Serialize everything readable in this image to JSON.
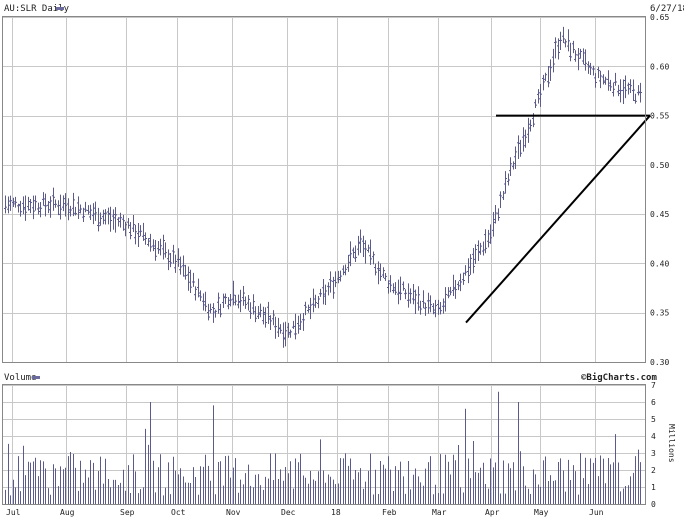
{
  "header": {
    "title": "AU:SLR Daily",
    "date": "6/27/18",
    "credit": "©BigCharts.com"
  },
  "colors": {
    "background": "#ffffff",
    "grid": "#c8c8c8",
    "bars": "#5a5a8c",
    "trendline": "#000000",
    "legend_marker": "#6b6b9e"
  },
  "chart_data": [
    {
      "type": "ohlc",
      "title": "AU:SLR Daily",
      "date_label": "6/27/18",
      "ylim": [
        0.3,
        0.65
      ],
      "yticks": [
        0.3,
        0.35,
        0.4,
        0.45,
        0.5,
        0.55,
        0.6,
        0.65
      ],
      "ytick_labels": [
        "0.30",
        "0.35",
        "0.40",
        "0.45",
        "0.50",
        "0.55",
        "0.60",
        "0.65"
      ],
      "grid": true,
      "month_labels": [
        "Jul",
        "Aug",
        "Sep",
        "Oct",
        "Nov",
        "Dec",
        "18",
        "Feb",
        "Mar",
        "Apr",
        "May",
        "Jun"
      ],
      "approx_close_path": [
        {
          "x": "Jul",
          "y": 0.46
        },
        {
          "x": "Aug",
          "y": 0.46
        },
        {
          "x": "Sep",
          "y": 0.44
        },
        {
          "x": "Oct",
          "y": 0.4
        },
        {
          "x": "Oct (late)",
          "y": 0.35
        },
        {
          "x": "Nov",
          "y": 0.37
        },
        {
          "x": "Dec",
          "y": 0.33
        },
        {
          "x": "18",
          "y": 0.37
        },
        {
          "x": "18 (mid)",
          "y": 0.42
        },
        {
          "x": "Feb",
          "y": 0.38
        },
        {
          "x": "Mar",
          "y": 0.35
        },
        {
          "x": "Apr",
          "y": 0.43
        },
        {
          "x": "Apr (late)",
          "y": 0.5
        },
        {
          "x": "May",
          "y": 0.57
        },
        {
          "x": "May (mid)",
          "y": 0.63
        },
        {
          "x": "Jun",
          "y": 0.59
        },
        {
          "x": "Jun (late)",
          "y": 0.57
        }
      ],
      "annotations": [
        {
          "kind": "horizontal-line",
          "y": 0.55,
          "from": "Apr (mid)",
          "to": "Jun (end)"
        },
        {
          "kind": "trend-line",
          "from": {
            "x": "Mar (late)",
            "y": 0.34
          },
          "to": {
            "x": "Jun (end)",
            "y": 0.55
          }
        }
      ]
    },
    {
      "type": "bar",
      "title": "Volume",
      "unit_label": "Millions",
      "ylim": [
        0,
        7
      ],
      "yticks": [
        0,
        1,
        2,
        3,
        4,
        5,
        6,
        7
      ],
      "ytick_labels": [
        "0",
        "1",
        "2",
        "3",
        "4",
        "5",
        "6",
        "7"
      ],
      "grid": true,
      "x_labels": [
        "Jul",
        "Aug",
        "Sep",
        "Oct",
        "Nov",
        "Dec",
        "18",
        "Feb",
        "Mar",
        "Apr",
        "May",
        "Jun"
      ],
      "notable_values": [
        {
          "x": "Sep (late)",
          "y": 6.0
        },
        {
          "x": "Oct (late)",
          "y": 5.8
        },
        {
          "x": "Mar (late)",
          "y": 5.6
        },
        {
          "x": "Apr (early)",
          "y": 6.6
        },
        {
          "x": "Apr (mid)",
          "y": 6.0
        }
      ],
      "typical_range": [
        0.5,
        3.0
      ]
    }
  ]
}
